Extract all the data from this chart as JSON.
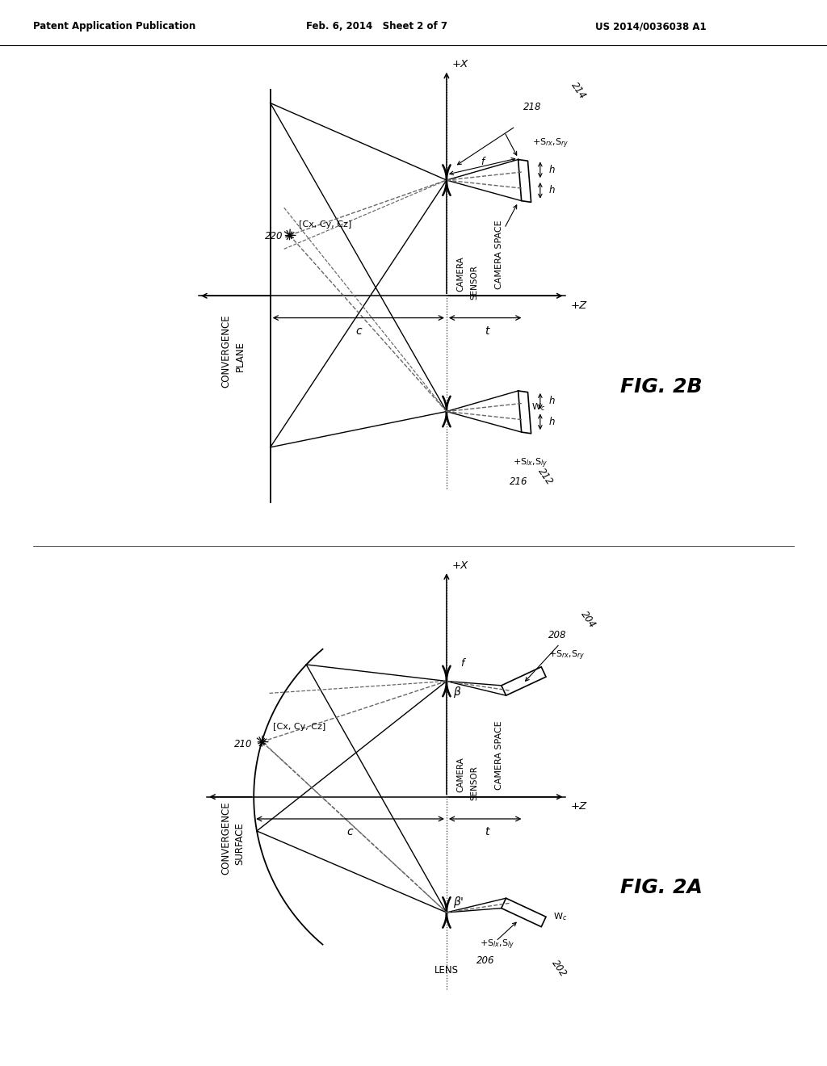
{
  "header_left": "Patent Application Publication",
  "header_mid": "Feb. 6, 2014   Sheet 2 of 7",
  "header_right": "US 2014/0036038 A1",
  "fig_a_label": "FIG. 2A",
  "fig_b_label": "FIG. 2B",
  "bg": "#ffffff",
  "lc": "#000000",
  "dc": "#666666"
}
